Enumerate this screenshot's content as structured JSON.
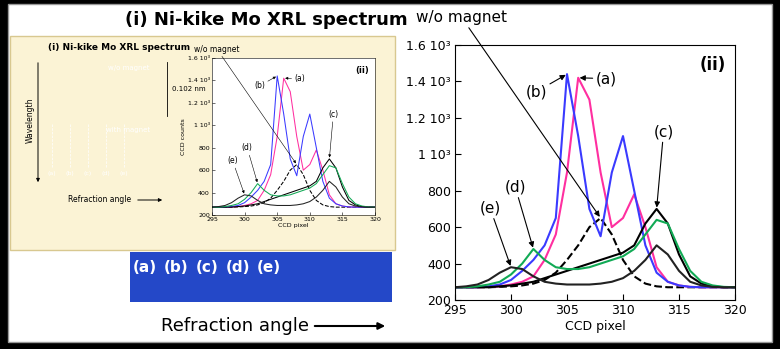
{
  "slide": {
    "title": "(i) Ni-kike Mo XRL spectrum",
    "image_labels": [
      "(a)",
      "(b)",
      "(c)",
      "(d)",
      "(e)"
    ],
    "x_label": "Refraction angle"
  },
  "inset": {
    "title": "(i) Ni-kike Mo XRL spectrum",
    "panels": [
      "w/o magnet",
      "with magnet"
    ],
    "scale_label": "0.102 nm",
    "y_label": "Wavelength",
    "x_label": "Refraction angle",
    "image_labels": [
      "(a)",
      "(b)",
      "(c)",
      "(d)",
      "(e)"
    ]
  },
  "chart_data": [
    {
      "type": "line",
      "x_label": "CCD pixel",
      "annotations": [
        "(ii)"
      ],
      "x": [
        295,
        296,
        297,
        298,
        299,
        300,
        301,
        302,
        303,
        304,
        305,
        306,
        307,
        308,
        309,
        310,
        311,
        312,
        313,
        314,
        315,
        316,
        317,
        318,
        319,
        320
      ],
      "xlim": [
        295,
        320
      ],
      "ylim": [
        200,
        1600
      ],
      "xticks": [
        295,
        300,
        305,
        310,
        315,
        320
      ],
      "yticks": [
        200,
        400,
        600,
        800,
        {
          "value": 1000,
          "label": "1 10³"
        },
        {
          "value": 1200,
          "label": "1.2 10³"
        },
        {
          "value": 1400,
          "label": "1.4 10³"
        },
        {
          "value": 1600,
          "label": "1.6 10³"
        }
      ],
      "series": [
        {
          "name": "w/o magnet",
          "color": "#000000",
          "line_style": "dashed",
          "values": [
            270,
            270,
            270,
            270,
            272,
            275,
            280,
            290,
            310,
            350,
            420,
            500,
            600,
            650,
            560,
            420,
            330,
            290,
            275,
            270,
            270,
            270,
            270,
            270,
            270,
            270
          ]
        },
        {
          "name": "(a)",
          "color": "#ff2fa0",
          "line_style": "solid",
          "values": [
            270,
            270,
            270,
            272,
            275,
            285,
            300,
            330,
            420,
            560,
            900,
            1420,
            1300,
            900,
            600,
            650,
            780,
            600,
            380,
            300,
            280,
            272,
            270,
            270,
            270,
            270
          ]
        },
        {
          "name": "(b)",
          "color": "#3a3aff",
          "line_style": "solid",
          "values": [
            270,
            270,
            270,
            275,
            285,
            310,
            360,
            420,
            500,
            650,
            1440,
            1100,
            700,
            550,
            900,
            1100,
            800,
            500,
            350,
            300,
            280,
            272,
            270,
            270,
            270,
            270
          ]
        },
        {
          "name": "(c)",
          "color": "#000000",
          "line_style": "solid",
          "values": [
            270,
            270,
            270,
            270,
            275,
            280,
            290,
            300,
            320,
            340,
            360,
            380,
            400,
            420,
            440,
            460,
            500,
            620,
            700,
            620,
            450,
            330,
            290,
            275,
            270,
            270
          ]
        },
        {
          "name": "(d)",
          "color": "#11aa55",
          "line_style": "solid",
          "values": [
            270,
            270,
            275,
            285,
            300,
            340,
            400,
            480,
            420,
            380,
            370,
            370,
            380,
            400,
            420,
            440,
            480,
            560,
            640,
            620,
            480,
            360,
            300,
            280,
            272,
            270
          ]
        },
        {
          "name": "(e)",
          "color": "#222222",
          "line_style": "solid",
          "values": [
            270,
            275,
            285,
            310,
            350,
            380,
            370,
            330,
            300,
            290,
            285,
            285,
            285,
            290,
            300,
            320,
            360,
            420,
            500,
            450,
            360,
            300,
            280,
            272,
            270,
            270
          ]
        }
      ]
    },
    {
      "type": "line",
      "x_label": "CCD pixel",
      "y_label": "CCD counts",
      "annotations": [
        "(ii)"
      ],
      "x": [
        295,
        296,
        297,
        298,
        299,
        300,
        301,
        302,
        303,
        304,
        305,
        306,
        307,
        308,
        309,
        310,
        311,
        312,
        313,
        314,
        315,
        316,
        317,
        318,
        319,
        320
      ],
      "xlim": [
        295,
        320
      ],
      "ylim": [
        200,
        1600
      ],
      "xticks": [
        295,
        300,
        305,
        310,
        315,
        320
      ],
      "yticks": [
        200,
        400,
        600,
        800,
        {
          "value": 1000,
          "label": "1 10³"
        },
        {
          "value": 1200,
          "label": "1.2 10³"
        },
        {
          "value": 1400,
          "label": "1.4 10³"
        },
        {
          "value": 1600,
          "label": "1.6 10³"
        }
      ],
      "series": [
        {
          "name": "w/o magnet",
          "color": "#000000",
          "line_style": "dashed",
          "values": [
            270,
            270,
            270,
            270,
            272,
            275,
            280,
            290,
            310,
            350,
            420,
            500,
            600,
            650,
            560,
            420,
            330,
            290,
            275,
            270,
            270,
            270,
            270,
            270,
            270,
            270
          ]
        },
        {
          "name": "(a)",
          "color": "#ff2fa0",
          "line_style": "solid",
          "values": [
            270,
            270,
            270,
            272,
            275,
            285,
            300,
            330,
            420,
            560,
            900,
            1420,
            1300,
            900,
            600,
            650,
            780,
            600,
            380,
            300,
            280,
            272,
            270,
            270,
            270,
            270
          ]
        },
        {
          "name": "(b)",
          "color": "#3a3aff",
          "line_style": "solid",
          "values": [
            270,
            270,
            270,
            275,
            285,
            310,
            360,
            420,
            500,
            650,
            1440,
            1100,
            700,
            550,
            900,
            1100,
            800,
            500,
            350,
            300,
            280,
            272,
            270,
            270,
            270,
            270
          ]
        },
        {
          "name": "(c)",
          "color": "#000000",
          "line_style": "solid",
          "values": [
            270,
            270,
            270,
            270,
            275,
            280,
            290,
            300,
            320,
            340,
            360,
            380,
            400,
            420,
            440,
            460,
            500,
            620,
            700,
            620,
            450,
            330,
            290,
            275,
            270,
            270
          ]
        },
        {
          "name": "(d)",
          "color": "#11aa55",
          "line_style": "solid",
          "values": [
            270,
            270,
            275,
            285,
            300,
            340,
            400,
            480,
            420,
            380,
            370,
            370,
            380,
            400,
            420,
            440,
            480,
            560,
            640,
            620,
            480,
            360,
            300,
            280,
            272,
            270
          ]
        },
        {
          "name": "(e)",
          "color": "#222222",
          "line_style": "solid",
          "values": [
            270,
            275,
            285,
            310,
            350,
            380,
            370,
            330,
            300,
            290,
            285,
            285,
            285,
            290,
            300,
            320,
            360,
            420,
            500,
            450,
            360,
            300,
            280,
            272,
            270,
            270
          ]
        }
      ]
    }
  ]
}
